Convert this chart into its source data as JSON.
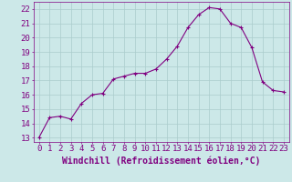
{
  "x": [
    0,
    1,
    2,
    3,
    4,
    5,
    6,
    7,
    8,
    9,
    10,
    11,
    12,
    13,
    14,
    15,
    16,
    17,
    18,
    19,
    20,
    21,
    22,
    23
  ],
  "y": [
    13.0,
    14.4,
    14.5,
    14.3,
    15.4,
    16.0,
    16.1,
    17.1,
    17.3,
    17.5,
    17.5,
    17.8,
    18.5,
    19.4,
    20.7,
    21.6,
    22.1,
    22.0,
    21.0,
    20.7,
    19.3,
    16.9,
    16.3,
    16.2
  ],
  "line_color": "#800080",
  "marker": "+",
  "bg_color": "#cce8e8",
  "grid_color": "#aacccc",
  "xlabel": "Windchill (Refroidissement éolien,°C)",
  "xlim": [
    -0.5,
    23.5
  ],
  "ylim": [
    12.7,
    22.5
  ],
  "xticks": [
    0,
    1,
    2,
    3,
    4,
    5,
    6,
    7,
    8,
    9,
    10,
    11,
    12,
    13,
    14,
    15,
    16,
    17,
    18,
    19,
    20,
    21,
    22,
    23
  ],
  "yticks": [
    13,
    14,
    15,
    16,
    17,
    18,
    19,
    20,
    21,
    22
  ],
  "tick_color": "#800080",
  "label_color": "#800080",
  "spine_color": "#800080",
  "xlabel_fontsize": 7,
  "tick_fontsize": 6.5
}
